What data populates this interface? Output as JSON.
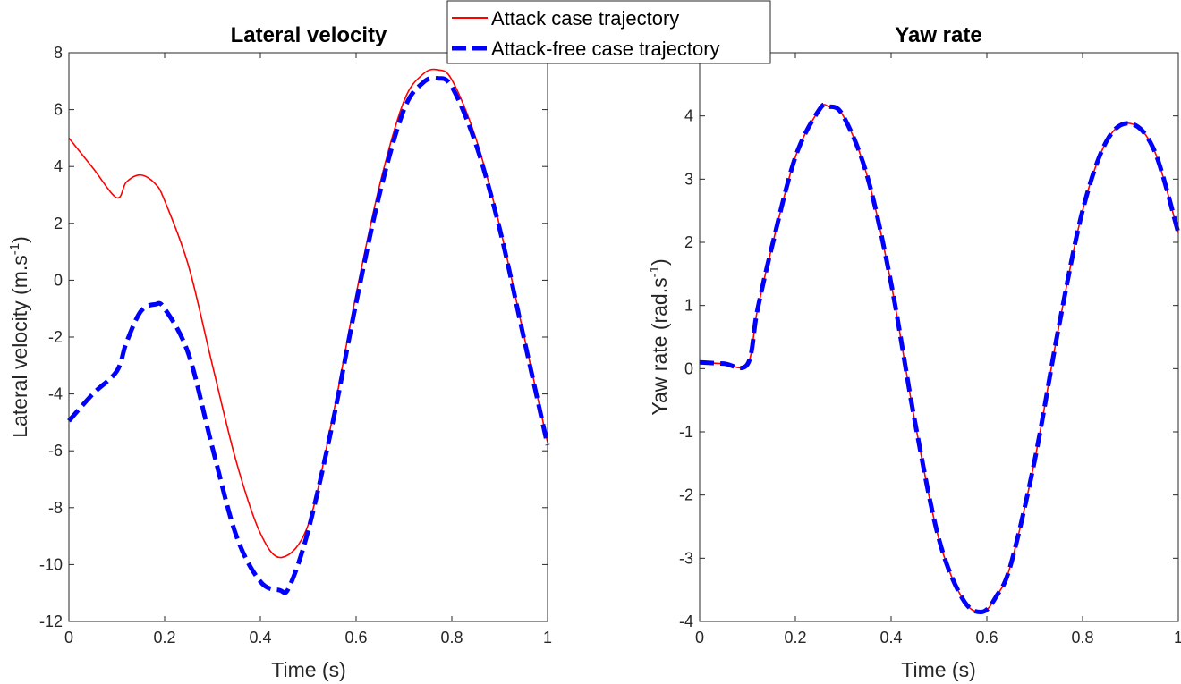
{
  "chart_data": [
    {
      "type": "line",
      "title": "Lateral velocity",
      "xlabel": "Time (s)",
      "ylabel": "Lateral velocity (m.s",
      "ylabel_sup": "-1",
      "ylabel_end": ")",
      "xlim": [
        0,
        1
      ],
      "ylim": [
        -12,
        8
      ],
      "xticks": [
        0,
        0.2,
        0.4,
        0.6,
        0.8,
        1
      ],
      "xtick_labels": [
        "0",
        "0.2",
        "0.4",
        "0.6",
        "0.8",
        "1"
      ],
      "yticks": [
        -12,
        -10,
        -8,
        -6,
        -4,
        -2,
        0,
        2,
        4,
        6,
        8
      ],
      "ytick_labels": [
        "-12",
        "-10",
        "-8",
        "-6",
        "-4",
        "-2",
        "0",
        "2",
        "4",
        "6",
        "8"
      ],
      "series": [
        {
          "name": "Attack case trajectory",
          "color": "#ff0000",
          "style": "solid",
          "x": [
            0,
            0.05,
            0.1,
            0.12,
            0.15,
            0.18,
            0.2,
            0.25,
            0.3,
            0.35,
            0.4,
            0.445,
            0.5,
            0.55,
            0.6,
            0.65,
            0.7,
            0.74,
            0.77,
            0.8,
            0.85,
            0.9,
            0.95,
            1.0
          ],
          "y": [
            5.0,
            3.95,
            2.9,
            3.45,
            3.7,
            3.4,
            2.8,
            0.5,
            -3.0,
            -6.4,
            -8.9,
            -9.75,
            -8.6,
            -4.9,
            -0.5,
            3.4,
            6.3,
            7.25,
            7.4,
            7.05,
            5.0,
            1.9,
            -1.9,
            -5.7
          ]
        },
        {
          "name": "Attack-free case trajectory",
          "color": "#0000ff",
          "style": "dashed",
          "x": [
            0,
            0.05,
            0.1,
            0.12,
            0.15,
            0.18,
            0.2,
            0.25,
            0.3,
            0.35,
            0.4,
            0.44,
            0.46,
            0.5,
            0.55,
            0.6,
            0.65,
            0.7,
            0.74,
            0.77,
            0.8,
            0.85,
            0.9,
            0.95,
            1.0
          ],
          "y": [
            -4.95,
            -4.0,
            -3.2,
            -2.2,
            -1.1,
            -0.85,
            -1.0,
            -2.6,
            -5.9,
            -9.0,
            -10.6,
            -10.9,
            -10.8,
            -8.8,
            -5.1,
            -0.8,
            3.1,
            6.0,
            6.95,
            7.1,
            6.8,
            4.8,
            1.8,
            -2.0,
            -5.8
          ]
        }
      ]
    },
    {
      "type": "line",
      "title": "Yaw rate",
      "xlabel": "Time (s)",
      "ylabel": "Yaw rate (rad.s",
      "ylabel_sup": "-1",
      "ylabel_end": ")",
      "xlim": [
        0,
        1
      ],
      "ylim": [
        -4,
        5
      ],
      "xticks": [
        0,
        0.2,
        0.4,
        0.6,
        0.8,
        1
      ],
      "xtick_labels": [
        "0",
        "0.2",
        "0.4",
        "0.6",
        "0.8",
        "1"
      ],
      "yticks": [
        -4,
        -3,
        -2,
        -1,
        0,
        1,
        2,
        3,
        4
      ],
      "ytick_labels": [
        "-4",
        "-3",
        "-2",
        "-1",
        "0",
        "1",
        "2",
        "3",
        "4"
      ],
      "series": [
        {
          "name": "Attack case trajectory",
          "color": "#ff0000",
          "style": "solid",
          "x": [
            0,
            0.05,
            0.1,
            0.12,
            0.15,
            0.2,
            0.25,
            0.27,
            0.3,
            0.35,
            0.4,
            0.45,
            0.5,
            0.55,
            0.59,
            0.62,
            0.65,
            0.7,
            0.75,
            0.8,
            0.85,
            0.9,
            0.95,
            1.0
          ],
          "y": [
            0.1,
            0.08,
            0.07,
            0.9,
            1.9,
            3.35,
            4.1,
            4.15,
            4.0,
            3.05,
            1.35,
            -0.85,
            -2.7,
            -3.65,
            -3.85,
            -3.6,
            -3.1,
            -1.45,
            0.65,
            2.5,
            3.6,
            3.88,
            3.45,
            2.15
          ]
        },
        {
          "name": "Attack-free case trajectory",
          "color": "#0000ff",
          "style": "dashed",
          "x": [
            0,
            0.05,
            0.1,
            0.12,
            0.15,
            0.2,
            0.25,
            0.27,
            0.3,
            0.35,
            0.4,
            0.45,
            0.5,
            0.55,
            0.59,
            0.62,
            0.65,
            0.7,
            0.75,
            0.8,
            0.85,
            0.9,
            0.95,
            1.0
          ],
          "y": [
            0.1,
            0.08,
            0.07,
            0.9,
            1.9,
            3.35,
            4.1,
            4.15,
            4.0,
            3.05,
            1.35,
            -0.85,
            -2.7,
            -3.65,
            -3.85,
            -3.6,
            -3.1,
            -1.45,
            0.65,
            2.5,
            3.6,
            3.88,
            3.45,
            2.15
          ]
        }
      ]
    }
  ],
  "legend": {
    "items": [
      {
        "label": "Attack case trajectory",
        "color": "#ff0000",
        "style": "solid"
      },
      {
        "label": "Attack-free case trajectory",
        "color": "#0000ff",
        "style": "dashed"
      }
    ]
  }
}
